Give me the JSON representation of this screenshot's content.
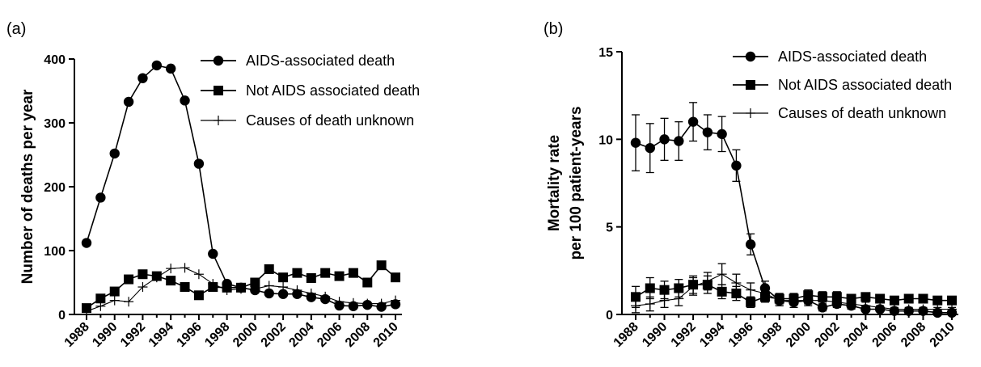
{
  "chart_data": [
    {
      "type": "line",
      "panel_label": "(a)",
      "title": "",
      "xlabel": "",
      "ylabel": "Number of deaths per year",
      "x": [
        1988,
        1989,
        1990,
        1991,
        1992,
        1993,
        1994,
        1995,
        1996,
        1997,
        1998,
        1999,
        2000,
        2001,
        2002,
        2003,
        2004,
        2005,
        2006,
        2007,
        2008,
        2009,
        2010
      ],
      "x_ticks": [
        "1988",
        "1990",
        "1992",
        "1994",
        "1996",
        "1998",
        "2000",
        "2002",
        "2004",
        "2006",
        "2008",
        "2010"
      ],
      "ylim": [
        0,
        400
      ],
      "y_ticks": [
        "0",
        "100",
        "200",
        "300",
        "400"
      ],
      "y_tick_values": [
        0,
        100,
        200,
        300,
        400
      ],
      "legend_position": "top-right",
      "series": [
        {
          "name": "AIDS-associated death",
          "marker": "circle",
          "values": [
            112,
            183,
            252,
            333,
            370,
            390,
            385,
            335,
            236,
            95,
            48,
            42,
            38,
            33,
            32,
            32,
            27,
            24,
            14,
            13,
            15,
            12,
            16
          ]
        },
        {
          "name": "Not AIDS associated death",
          "marker": "square",
          "values": [
            10,
            25,
            36,
            55,
            63,
            60,
            53,
            43,
            30,
            43,
            42,
            42,
            50,
            71,
            58,
            65,
            57,
            65,
            60,
            65,
            50,
            77,
            58
          ]
        },
        {
          "name": "Causes of death unknown",
          "marker": "plus",
          "values": [
            5,
            13,
            22,
            20,
            43,
            58,
            72,
            73,
            63,
            48,
            38,
            40,
            40,
            45,
            43,
            38,
            33,
            28,
            20,
            18,
            17,
            17,
            22
          ]
        }
      ]
    },
    {
      "type": "line",
      "panel_label": "(b)",
      "title": "",
      "xlabel": "",
      "ylabel": "Mortality rate per 100 patient-years",
      "ylabel_lines": [
        "Mortality rate",
        "per 100 patient-years"
      ],
      "x": [
        1988,
        1989,
        1990,
        1991,
        1992,
        1993,
        1994,
        1995,
        1996,
        1997,
        1998,
        1999,
        2000,
        2001,
        2002,
        2003,
        2004,
        2005,
        2006,
        2007,
        2008,
        2009,
        2010
      ],
      "x_ticks": [
        "1988",
        "1990",
        "1992",
        "1994",
        "1996",
        "1998",
        "2000",
        "2002",
        "2004",
        "2006",
        "2008",
        "2010"
      ],
      "ylim": [
        0,
        15
      ],
      "y_ticks": [
        "0",
        "5",
        "10",
        "15"
      ],
      "y_tick_values": [
        0,
        5,
        10,
        15
      ],
      "legend_position": "top-right",
      "series": [
        {
          "name": "AIDS-associated death",
          "marker": "circle",
          "values": [
            9.8,
            9.5,
            10.0,
            9.9,
            11.0,
            10.4,
            10.3,
            8.5,
            4.0,
            1.5,
            0.8,
            0.7,
            0.8,
            0.4,
            0.6,
            0.5,
            0.3,
            0.3,
            0.2,
            0.2,
            0.2,
            0.1,
            0.1
          ],
          "error": [
            1.6,
            1.4,
            1.2,
            1.1,
            1.1,
            1.0,
            1.0,
            0.9,
            0.6,
            0.4,
            0.3,
            0.3,
            0.3,
            0.2,
            0.2,
            0.2,
            0.1,
            0.1,
            0.1,
            0.1,
            0.1,
            0.1,
            0.1
          ]
        },
        {
          "name": "Not AIDS associated death",
          "marker": "square",
          "values": [
            1.0,
            1.5,
            1.4,
            1.5,
            1.7,
            1.7,
            1.3,
            1.2,
            0.7,
            1.0,
            0.9,
            0.9,
            1.1,
            1.0,
            1.0,
            0.9,
            1.0,
            0.9,
            0.8,
            0.9,
            0.9,
            0.8,
            0.8
          ],
          "error": [
            0.6,
            0.6,
            0.5,
            0.5,
            0.5,
            0.5,
            0.4,
            0.4,
            0.3,
            0.3,
            0.3,
            0.3,
            0.3,
            0.3,
            0.3,
            0.2,
            0.2,
            0.2,
            0.2,
            0.2,
            0.2,
            0.2,
            0.2
          ]
        },
        {
          "name": "Causes of death unknown",
          "marker": "plus",
          "values": [
            0.5,
            0.6,
            0.8,
            0.9,
            1.6,
            1.9,
            2.3,
            1.8,
            1.4,
            1.2,
            0.8,
            0.8,
            0.8,
            0.8,
            0.7,
            0.6,
            0.5,
            0.4,
            0.3,
            0.3,
            0.3,
            0.3,
            0.3
          ],
          "error": [
            0.4,
            0.4,
            0.4,
            0.4,
            0.5,
            0.5,
            0.6,
            0.5,
            0.4,
            0.3,
            0.3,
            0.2,
            0.2,
            0.2,
            0.2,
            0.2,
            0.2,
            0.1,
            0.1,
            0.1,
            0.1,
            0.1,
            0.1
          ]
        }
      ]
    }
  ]
}
